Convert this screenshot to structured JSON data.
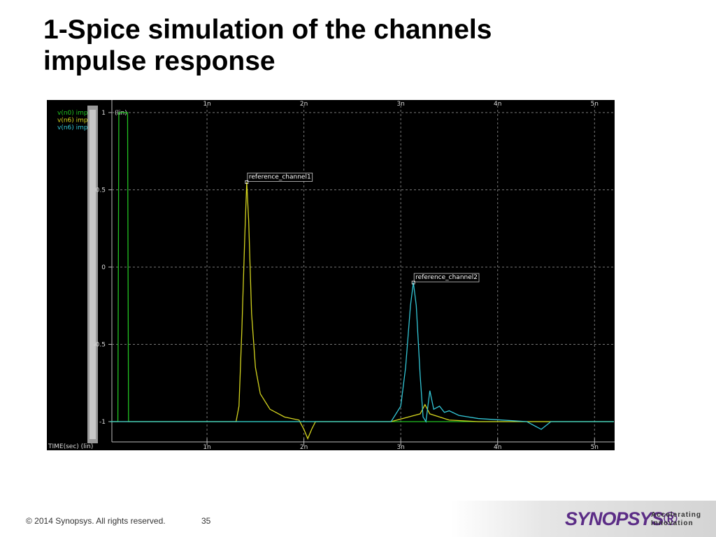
{
  "slide_title": [
    "1-Spice simulation of the channels",
    "impulse response"
  ],
  "footer": {
    "copyright": "© 2014 Synopsys. All rights reserved.",
    "page": "35",
    "logo": "SYNOPSYS®",
    "tagline": [
      "Accelerating",
      "Innovation"
    ]
  },
  "chart_data": {
    "type": "line",
    "xlabel": "TIME(sec) (lin)",
    "ylabel": "(lin)",
    "xlim": [
      0,
      5.2e-09
    ],
    "ylim": [
      -1.13,
      1.08
    ],
    "xticks": [
      {
        "value": 1e-09,
        "label": "1n"
      },
      {
        "value": 2e-09,
        "label": "2n"
      },
      {
        "value": 3e-09,
        "label": "3n"
      },
      {
        "value": 4e-09,
        "label": "4n"
      },
      {
        "value": 5e-09,
        "label": "5n"
      }
    ],
    "yticks": [
      1,
      0.5,
      0,
      -0.5,
      -1
    ],
    "grid": true,
    "series": [
      {
        "name": "v(n0) imp",
        "color": "#22c322",
        "x": [
          0,
          8e-11,
          9e-11,
          1.8e-10,
          1.9e-10,
          5.2e-09
        ],
        "values": [
          -1,
          -1,
          1.0,
          1.0,
          -1,
          -1
        ]
      },
      {
        "name": "v(n6) imp",
        "color": "#d4d41e",
        "x": [
          0,
          1.3e-09,
          1.33e-09,
          1.36e-09,
          1.39e-09,
          1.41e-09,
          1.43e-09,
          1.46e-09,
          1.5e-09,
          1.55e-09,
          1.65e-09,
          1.8e-09,
          1.95e-09,
          2e-09,
          2.04e-09,
          2.08e-09,
          2.12e-09,
          2.5e-09,
          2.9e-09,
          3.2e-09,
          3.25e-09,
          3.3e-09,
          3.5e-09,
          3.8e-09,
          5.2e-09
        ],
        "values": [
          -1,
          -1,
          -0.9,
          -0.4,
          0.2,
          0.55,
          0.3,
          -0.3,
          -0.65,
          -0.82,
          -0.92,
          -0.97,
          -0.99,
          -1.05,
          -1.11,
          -1.05,
          -1.0,
          -1.0,
          -1.0,
          -0.95,
          -0.89,
          -0.95,
          -0.99,
          -1.0,
          -1.0
        ]
      },
      {
        "name": "v(n6) imp",
        "color": "#33c6d6",
        "x": [
          0,
          2.9e-09,
          3e-09,
          3.05e-09,
          3.1e-09,
          3.13e-09,
          3.16e-09,
          3.2e-09,
          3.23e-09,
          3.26e-09,
          3.3e-09,
          3.34e-09,
          3.4e-09,
          3.45e-09,
          3.5e-09,
          3.6e-09,
          3.8e-09,
          4.3e-09,
          4.45e-09,
          4.55e-09,
          5.2e-09
        ],
        "values": [
          -1,
          -1,
          -0.9,
          -0.65,
          -0.25,
          -0.1,
          -0.25,
          -0.7,
          -0.97,
          -1.0,
          -0.8,
          -0.92,
          -0.9,
          -0.94,
          -0.93,
          -0.96,
          -0.98,
          -1.0,
          -1.05,
          -1.0,
          -1.0
        ]
      }
    ],
    "annotations": [
      {
        "text": "reference_channel1",
        "x": 1.41e-09,
        "y": 0.55
      },
      {
        "text": "reference_channel2",
        "x": 3.13e-09,
        "y": -0.1
      }
    ]
  }
}
